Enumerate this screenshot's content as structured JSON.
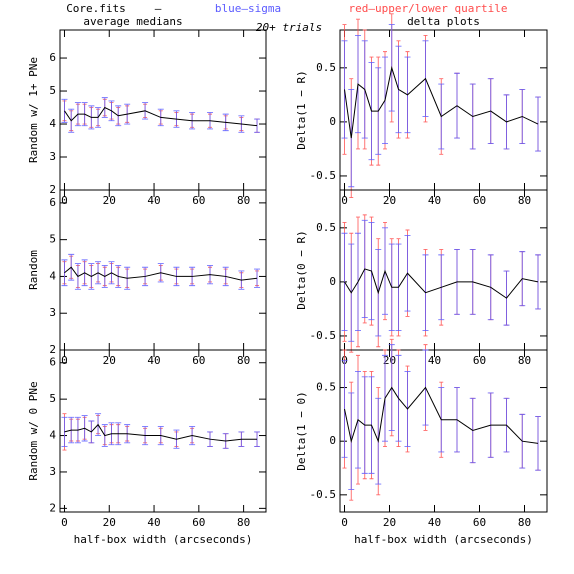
{
  "header": {
    "file": "Core.fits",
    "dash": "–",
    "note": "20+ trials"
  },
  "chart_data": [
    {
      "type": "line",
      "title": "average medians",
      "ylabel": "Random w/ 1+ PNe",
      "xlim": [
        -2,
        90
      ],
      "xticks": [
        0,
        20,
        40,
        60,
        80
      ],
      "ylim": [
        2,
        6.85
      ],
      "yticks": [
        2,
        3,
        4,
        5,
        6
      ],
      "color": "#000000",
      "x": [
        0,
        3,
        6,
        9,
        12,
        15,
        18,
        21,
        24,
        28,
        36,
        43,
        50,
        57,
        65,
        72,
        79,
        86
      ],
      "values": [
        4.4,
        4.1,
        4.3,
        4.3,
        4.2,
        4.2,
        4.5,
        4.4,
        4.25,
        4.3,
        4.4,
        4.2,
        4.15,
        4.1,
        4.1,
        4.05,
        4.0,
        3.95
      ],
      "errors": [
        {
          "name": "blue–sigma",
          "color": "#5a5aff",
          "values": [
            0.35,
            0.35,
            0.35,
            0.35,
            0.35,
            0.3,
            0.3,
            0.3,
            0.3,
            0.3,
            0.25,
            0.25,
            0.25,
            0.25,
            0.25,
            0.25,
            0.25,
            0.2
          ]
        },
        {
          "name": "red–upper/lower quartile",
          "color": "#ff4c4c",
          "values": [
            0.3,
            0.3,
            0.3,
            0.3,
            0.3,
            0.25,
            0.25,
            0.25,
            0.25,
            0.25,
            0.2,
            0.2,
            0.2,
            0.2,
            0.2,
            0.2,
            0.2,
            0.2
          ]
        }
      ]
    },
    {
      "type": "line",
      "ylabel": "Random",
      "xlim": [
        -2,
        90
      ],
      "xticks": [
        0,
        20,
        40,
        60,
        80
      ],
      "ylim": [
        2,
        6.35
      ],
      "yticks": [
        2,
        3,
        4,
        5,
        6
      ],
      "color": "#000000",
      "x": [
        0,
        3,
        6,
        9,
        12,
        15,
        18,
        21,
        24,
        28,
        36,
        43,
        50,
        57,
        65,
        72,
        79,
        86
      ],
      "values": [
        4.1,
        4.25,
        4.0,
        4.1,
        4.0,
        4.1,
        4.0,
        4.1,
        4.0,
        3.95,
        4.0,
        4.1,
        4.0,
        4.0,
        4.05,
        4.0,
        3.9,
        3.95
      ],
      "errors": [
        {
          "name": "blue–sigma",
          "color": "#5a5aff",
          "values": [
            0.35,
            0.35,
            0.35,
            0.35,
            0.35,
            0.3,
            0.3,
            0.3,
            0.3,
            0.3,
            0.25,
            0.25,
            0.25,
            0.25,
            0.25,
            0.25,
            0.25,
            0.25
          ]
        },
        {
          "name": "red–upper/lower quartile",
          "color": "#ff4c4c",
          "values": [
            0.3,
            0.3,
            0.3,
            0.3,
            0.3,
            0.25,
            0.25,
            0.25,
            0.25,
            0.25,
            0.2,
            0.2,
            0.2,
            0.2,
            0.2,
            0.2,
            0.2,
            0.2
          ]
        }
      ]
    },
    {
      "type": "line",
      "ylabel": "Random w/ 0 PNe",
      "xlabel": "half-box width (arcseconds)",
      "xlim": [
        -2,
        90
      ],
      "xticks": [
        0,
        20,
        40,
        60,
        80
      ],
      "ylim": [
        1.9,
        6.35
      ],
      "yticks": [
        2,
        3,
        4,
        5,
        6
      ],
      "color": "#000000",
      "x": [
        0,
        3,
        6,
        9,
        12,
        15,
        18,
        21,
        24,
        28,
        36,
        43,
        50,
        57,
        65,
        72,
        79,
        86
      ],
      "values": [
        4.1,
        4.15,
        4.15,
        4.2,
        4.1,
        4.3,
        4.0,
        4.05,
        4.05,
        4.05,
        4.0,
        4.0,
        3.9,
        4.0,
        3.9,
        3.85,
        3.9,
        3.9
      ],
      "errors": [
        {
          "name": "blue–sigma",
          "color": "#5a5aff",
          "values": [
            0.4,
            0.35,
            0.35,
            0.35,
            0.3,
            0.3,
            0.3,
            0.3,
            0.3,
            0.25,
            0.25,
            0.25,
            0.25,
            0.25,
            0.2,
            0.2,
            0.2,
            0.2
          ]
        },
        {
          "name": "red–upper/lower quartile",
          "color": "#ff4c4c",
          "values": [
            0.5,
            0.3,
            0.3,
            0.3,
            0.3,
            0.25,
            0.25,
            0.25,
            0.25,
            0.2,
            0.2,
            0.2,
            0.2,
            0.2,
            0.2,
            0.2,
            0.2,
            0.2
          ]
        }
      ]
    },
    {
      "type": "line",
      "title": "delta plots",
      "ylabel": "Delta(1 − R)",
      "xlim": [
        -2,
        90
      ],
      "xticks": [
        0,
        20,
        40,
        60,
        80
      ],
      "ylim": [
        -0.63,
        0.85
      ],
      "yticks": [
        -0.5,
        0,
        0.5
      ],
      "color": "#000000",
      "x": [
        0,
        3,
        6,
        9,
        12,
        15,
        18,
        21,
        24,
        28,
        36,
        43,
        50,
        57,
        65,
        72,
        79,
        86
      ],
      "values": [
        0.3,
        -0.15,
        0.35,
        0.3,
        0.1,
        0.1,
        0.2,
        0.5,
        0.3,
        0.25,
        0.4,
        0.05,
        0.15,
        0.05,
        0.1,
        0.0,
        0.05,
        -0.02
      ],
      "errors": [
        {
          "name": "blue–sigma",
          "color": "#5a5aff",
          "values": [
            0.45,
            0.45,
            0.45,
            0.45,
            0.45,
            0.4,
            0.4,
            0.4,
            0.4,
            0.35,
            0.35,
            0.3,
            0.3,
            0.3,
            0.3,
            0.25,
            0.25,
            0.25
          ]
        },
        {
          "name": "red–upper/lower quartile",
          "color": "#ff4c4c",
          "values": [
            0.6,
            0.55,
            0.6,
            0.55,
            0.5,
            0.5,
            0.45,
            0.5,
            0.45,
            0.4,
            0.4,
            0.35,
            0.3,
            0.3,
            0.3,
            0.25,
            0.25,
            0.25
          ]
        }
      ]
    },
    {
      "type": "line",
      "ylabel": "Delta(0 − R)",
      "xlim": [
        -2,
        90
      ],
      "xticks": [
        0,
        20,
        40,
        60,
        80
      ],
      "ylim": [
        -0.63,
        0.85
      ],
      "yticks": [
        -0.5,
        0,
        0.5
      ],
      "color": "#000000",
      "x": [
        0,
        3,
        6,
        9,
        12,
        15,
        18,
        21,
        24,
        28,
        36,
        43,
        50,
        57,
        65,
        72,
        79,
        86
      ],
      "values": [
        0.0,
        -0.1,
        0.0,
        0.12,
        0.1,
        -0.1,
        0.1,
        -0.05,
        -0.05,
        0.08,
        -0.1,
        -0.05,
        0.0,
        0.0,
        -0.05,
        -0.15,
        0.03,
        0.0
      ],
      "errors": [
        {
          "name": "blue–sigma",
          "color": "#5a5aff",
          "values": [
            0.45,
            0.45,
            0.45,
            0.45,
            0.45,
            0.4,
            0.4,
            0.4,
            0.4,
            0.35,
            0.35,
            0.3,
            0.3,
            0.3,
            0.3,
            0.25,
            0.25,
            0.25
          ]
        },
        {
          "name": "red–upper/lower quartile",
          "color": "#ff4c4c",
          "values": [
            0.55,
            0.55,
            0.6,
            0.5,
            0.5,
            0.5,
            0.45,
            0.45,
            0.45,
            0.4,
            0.4,
            0.35,
            0.3,
            0.3,
            0.3,
            0.25,
            0.25,
            0.25
          ]
        }
      ]
    },
    {
      "type": "line",
      "ylabel": "Delta(1 − 0)",
      "xlabel": "half-box width (arcseconds)",
      "xlim": [
        -2,
        90
      ],
      "xticks": [
        0,
        20,
        40,
        60,
        80
      ],
      "ylim": [
        -0.66,
        0.85
      ],
      "yticks": [
        -0.5,
        0,
        0.5
      ],
      "color": "#000000",
      "x": [
        0,
        3,
        6,
        9,
        12,
        15,
        18,
        21,
        24,
        28,
        36,
        43,
        50,
        57,
        65,
        72,
        79,
        86
      ],
      "values": [
        0.3,
        0.0,
        0.2,
        0.15,
        0.15,
        0.0,
        0.4,
        0.5,
        0.4,
        0.3,
        0.5,
        0.2,
        0.2,
        0.1,
        0.15,
        0.15,
        0.0,
        -0.02
      ],
      "errors": [
        {
          "name": "blue–sigma",
          "color": "#5a5aff",
          "values": [
            0.45,
            0.45,
            0.45,
            0.45,
            0.45,
            0.4,
            0.4,
            0.4,
            0.4,
            0.35,
            0.35,
            0.3,
            0.3,
            0.3,
            0.3,
            0.25,
            0.25,
            0.25
          ]
        },
        {
          "name": "red–upper/lower quartile",
          "color": "#ff4c4c",
          "values": [
            0.55,
            0.55,
            0.6,
            0.5,
            0.5,
            0.5,
            0.45,
            0.45,
            0.45,
            0.4,
            0.4,
            0.35,
            0.3,
            0.3,
            0.3,
            0.25,
            0.25,
            0.25
          ]
        }
      ]
    }
  ]
}
